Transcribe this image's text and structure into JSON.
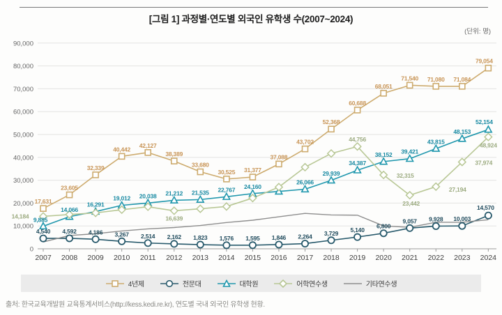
{
  "header": {
    "title": "[그림 1]  과정별·연도별 외국인 유학생 수(2007~2024)",
    "unit": "(단위: 명)"
  },
  "footer": {
    "source": "출처: 한국교육개발원 교육통계서비스(http://kess.kedi.re.kr), 연도별 국내 외국인 유학생 현황."
  },
  "chart_data": {
    "type": "line",
    "x": [
      "2007",
      "2008",
      "2009",
      "2010",
      "2011",
      "2012",
      "2013",
      "2014",
      "2015",
      "2016",
      "2017",
      "2018",
      "2019",
      "2020",
      "2021",
      "2022",
      "2023",
      "2024"
    ],
    "ylim": [
      0,
      90000
    ],
    "ytick_step": 10000,
    "grid": true,
    "legend_position": "bottom",
    "series": [
      {
        "name": "4년제",
        "marker": "square",
        "color": "#CDAB6E",
        "label_color": "#C89455",
        "values": [
          17631,
          23605,
          32339,
          40442,
          42127,
          38389,
          33680,
          30525,
          31377,
          37088,
          43702,
          52368,
          60688,
          68051,
          71540,
          71080,
          71084,
          79054
        ],
        "labels_shown": [
          true,
          true,
          true,
          true,
          true,
          true,
          true,
          true,
          true,
          true,
          true,
          true,
          true,
          true,
          true,
          true,
          true,
          true
        ],
        "label_offsets": {
          "17": [
            -6,
            -7
          ]
        }
      },
      {
        "name": "전문대",
        "marker": "circle",
        "color": "#27596B",
        "label_color": "#1F4A5C",
        "values": [
          4540,
          4592,
          4186,
          3267,
          2514,
          2162,
          1823,
          1576,
          1595,
          1846,
          2264,
          3729,
          5140,
          6800,
          9057,
          9928,
          10003,
          14570
        ],
        "labels_shown": [
          true,
          true,
          true,
          true,
          true,
          true,
          true,
          true,
          true,
          true,
          true,
          true,
          true,
          true,
          true,
          true,
          true,
          true
        ],
        "label_offsets": {
          "17": [
            -4,
            -8
          ]
        }
      },
      {
        "name": "대학원",
        "marker": "triangle",
        "color": "#1F97AD",
        "label_color": "#1789A2",
        "values": [
          9885,
          14066,
          16291,
          19012,
          20038,
          21212,
          21535,
          22767,
          24160,
          25100,
          26066,
          29939,
          34387,
          38152,
          39421,
          43815,
          48153,
          52154
        ],
        "labels_shown": [
          true,
          true,
          true,
          true,
          true,
          true,
          true,
          true,
          true,
          false,
          true,
          true,
          true,
          true,
          true,
          true,
          true,
          true
        ],
        "label_offsets": {
          "0": [
            -4,
            -6
          ],
          "17": [
            -6,
            -8
          ]
        }
      },
      {
        "name": "어학연수생",
        "marker": "diamond",
        "color": "#B8C795",
        "label_color": "#9CAB80",
        "values": [
          14184,
          15000,
          15700,
          17100,
          18400,
          16639,
          17500,
          18500,
          22200,
          27000,
          35700,
          41700,
          44756,
          32315,
          23442,
          27194,
          37974,
          48924
        ],
        "labels_shown": [
          true,
          false,
          false,
          false,
          false,
          true,
          false,
          false,
          false,
          false,
          false,
          false,
          true,
          true,
          true,
          true,
          true,
          true
        ],
        "label_offsets": {
          "0": [
            -33,
            3
          ],
          "5": [
            0,
            14
          ],
          "13": [
            31,
            4
          ],
          "14": [
            2,
            15
          ],
          "15": [
            31,
            7
          ],
          "16": [
            31,
            4
          ],
          "17": [
            0,
            15
          ]
        }
      },
      {
        "name": "기타연수생",
        "marker": "none",
        "color": "#8D8D8D",
        "label_color": "#8D8D8D",
        "values": [
          3000,
          5800,
          6600,
          7800,
          8700,
          9300,
          10200,
          11500,
          12500,
          14000,
          15500,
          14800,
          14700,
          10000,
          9400,
          11600,
          11600,
          12700
        ],
        "labels_shown": [
          false,
          false,
          false,
          false,
          false,
          false,
          false,
          false,
          false,
          false,
          false,
          false,
          false,
          false,
          false,
          false,
          false,
          false
        ],
        "label_offsets": {}
      }
    ]
  }
}
